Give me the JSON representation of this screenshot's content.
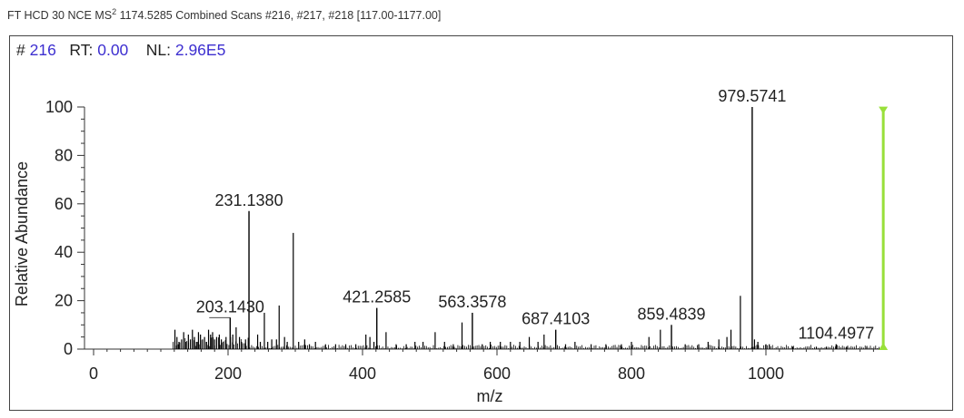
{
  "header": {
    "prefix": "FT HCD 30 NCE MS",
    "superscript": "2",
    "suffix": " 1174.5285 Combined Scans #216, #217, #218 [117.00-1177.00]"
  },
  "scan_info": {
    "scan_label": "#",
    "scan_value": "216",
    "rt_label": "RT:",
    "rt_value": "0.00",
    "nl_label": "NL:",
    "nl_value": "2.96E5"
  },
  "colors": {
    "peak": "#000000",
    "precursor_marker": "#99e03a",
    "value_text": "#3d2fd0"
  },
  "chart_data": {
    "type": "bar",
    "title": "",
    "xlabel": "m/z",
    "ylabel": "Relative Abundance",
    "xlim": [
      0,
      1177
    ],
    "ylim": [
      0,
      100
    ],
    "xticks": [
      0,
      200,
      400,
      600,
      800,
      1000
    ],
    "yticks": [
      0,
      20,
      40,
      60,
      80,
      100
    ],
    "grid": false,
    "precursor_marker": {
      "x": 1174.5285,
      "y": 99
    },
    "labeled_peaks": [
      {
        "x": 203.143,
        "y": 13,
        "label": "203.1430"
      },
      {
        "x": 231.138,
        "y": 57,
        "label": "231.1380"
      },
      {
        "x": 421.2585,
        "y": 17,
        "label": "421.2585"
      },
      {
        "x": 563.3578,
        "y": 15,
        "label": "563.3578"
      },
      {
        "x": 687.4103,
        "y": 8,
        "label": "687.4103"
      },
      {
        "x": 859.4839,
        "y": 10,
        "label": "859.4839"
      },
      {
        "x": 979.5741,
        "y": 100,
        "label": "979.5741"
      },
      {
        "x": 1104.4977,
        "y": 2,
        "label": "1104.4977"
      }
    ],
    "peaks": [
      [
        121,
        8
      ],
      [
        124,
        5
      ],
      [
        127,
        3
      ],
      [
        131,
        4
      ],
      [
        134,
        7
      ],
      [
        137,
        3
      ],
      [
        141,
        6
      ],
      [
        144,
        4
      ],
      [
        147,
        8
      ],
      [
        150,
        5
      ],
      [
        153,
        3
      ],
      [
        156,
        7
      ],
      [
        159,
        6
      ],
      [
        162,
        4
      ],
      [
        165,
        5
      ],
      [
        168,
        3
      ],
      [
        171,
        8
      ],
      [
        174,
        6
      ],
      [
        177,
        7
      ],
      [
        180,
        4
      ],
      [
        183,
        5
      ],
      [
        187,
        6
      ],
      [
        190,
        4
      ],
      [
        193,
        3
      ],
      [
        197,
        5
      ],
      [
        207,
        6
      ],
      [
        212,
        9
      ],
      [
        217,
        5
      ],
      [
        220,
        3
      ],
      [
        226,
        4
      ],
      [
        244,
        6
      ],
      [
        248,
        3
      ],
      [
        254,
        15
      ],
      [
        259,
        3
      ],
      [
        265,
        4
      ],
      [
        272,
        4
      ],
      [
        276,
        18
      ],
      [
        284,
        5
      ],
      [
        288,
        3
      ],
      [
        297,
        48
      ],
      [
        305,
        3
      ],
      [
        314,
        4
      ],
      [
        321,
        2
      ],
      [
        330,
        3
      ],
      [
        345,
        2
      ],
      [
        360,
        2
      ],
      [
        375,
        2
      ],
      [
        390,
        2
      ],
      [
        405,
        6
      ],
      [
        411,
        5
      ],
      [
        417,
        3
      ],
      [
        435,
        7
      ],
      [
        450,
        2
      ],
      [
        465,
        2
      ],
      [
        478,
        3
      ],
      [
        490,
        3
      ],
      [
        508,
        7
      ],
      [
        522,
        3
      ],
      [
        535,
        2
      ],
      [
        548,
        11
      ],
      [
        578,
        2
      ],
      [
        590,
        3
      ],
      [
        605,
        3
      ],
      [
        620,
        3
      ],
      [
        634,
        3
      ],
      [
        648,
        5
      ],
      [
        661,
        3
      ],
      [
        670,
        6
      ],
      [
        702,
        2
      ],
      [
        716,
        3
      ],
      [
        740,
        2
      ],
      [
        762,
        2
      ],
      [
        785,
        2
      ],
      [
        800,
        3
      ],
      [
        826,
        5
      ],
      [
        843,
        8
      ],
      [
        880,
        2
      ],
      [
        900,
        2
      ],
      [
        914,
        3
      ],
      [
        930,
        4
      ],
      [
        942,
        5
      ],
      [
        948,
        8
      ],
      [
        962,
        22
      ],
      [
        983,
        4
      ],
      [
        988,
        3
      ],
      [
        1000,
        2
      ],
      [
        1005,
        2
      ],
      [
        1040,
        1
      ],
      [
        1075,
        1
      ],
      [
        1090,
        1
      ],
      [
        1120,
        1
      ],
      [
        1150,
        1
      ]
    ]
  }
}
